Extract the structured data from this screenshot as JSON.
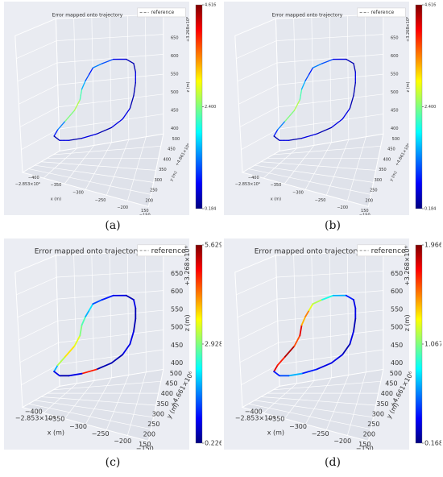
{
  "chart_data": [
    {
      "type": "line",
      "panel_label": "(a)",
      "title": "Error mapped onto trajectory",
      "legend": "reference",
      "x_axis": {
        "label": "x (m)",
        "offset": "−2.853×10⁶",
        "ticks": [
          "−400",
          "−350",
          "−300",
          "−250",
          "−200",
          "−150"
        ]
      },
      "y_axis": {
        "label": "y (m)",
        "offset": "+4.661×10⁶",
        "ticks": [
          "150",
          "200",
          "250",
          "300",
          "350",
          "400",
          "450",
          "500"
        ]
      },
      "z_axis": {
        "label": "z (m)",
        "offset": "+3.268×10⁶",
        "ticks": [
          "400",
          "450",
          "500",
          "550",
          "600",
          "650"
        ]
      },
      "colorbar": {
        "min": 0.184,
        "mid": 2.4,
        "max": 4.616,
        "labels": [
          "4.616",
          "2.400",
          "0.184"
        ]
      },
      "error_pattern": [
        0.15,
        0.25,
        0.5,
        0.55,
        0.45,
        0.3,
        0.2,
        0.15,
        0.25,
        0.2,
        0.1,
        0.05,
        0.05,
        0.1,
        0.05,
        0.05,
        0.1,
        0.1,
        0.05,
        0.1,
        0.05,
        0.1,
        0.05,
        0.1
      ]
    },
    {
      "type": "line",
      "panel_label": "(b)",
      "title": "Error mapped onto trajectory",
      "legend": "reference",
      "x_axis": {
        "label": "x (m)",
        "offset": "−2.853×10⁶",
        "ticks": [
          "−400",
          "−350",
          "−300",
          "−250",
          "−200",
          "−150"
        ]
      },
      "y_axis": {
        "label": "y (m)",
        "offset": "+4.661×10⁶",
        "ticks": [
          "150",
          "200",
          "250",
          "300",
          "350",
          "400",
          "450",
          "500"
        ]
      },
      "z_axis": {
        "label": "z (m)",
        "offset": "+3.268×10⁶",
        "ticks": [
          "400",
          "450",
          "500",
          "550",
          "600",
          "650"
        ]
      },
      "colorbar": {
        "min": 0.184,
        "mid": 2.4,
        "max": 4.616,
        "labels": [
          "4.616",
          "2.400",
          "0.184"
        ]
      },
      "error_pattern": [
        0.15,
        0.25,
        0.5,
        0.55,
        0.45,
        0.3,
        0.2,
        0.15,
        0.25,
        0.2,
        0.1,
        0.05,
        0.05,
        0.1,
        0.05,
        0.05,
        0.1,
        0.1,
        0.05,
        0.1,
        0.05,
        0.1,
        0.05,
        0.1
      ]
    },
    {
      "type": "line",
      "panel_label": "(c)",
      "title": "Error mapped onto trajectory",
      "legend": "reference",
      "x_axis": {
        "label": "x (m)",
        "offset": "−2.853×10⁶",
        "ticks": [
          "−400",
          "−350",
          "−300",
          "−250",
          "−200",
          "−150"
        ]
      },
      "y_axis": {
        "label": "y (m)",
        "offset": "+4.661×10⁶",
        "ticks": [
          "150",
          "200",
          "250",
          "300",
          "350",
          "400",
          "450",
          "500"
        ]
      },
      "z_axis": {
        "label": "z (m)",
        "offset": "+3.268×10⁶",
        "ticks": [
          "400",
          "450",
          "500",
          "550",
          "600",
          "650"
        ]
      },
      "colorbar": {
        "min": 0.226,
        "mid": 2.928,
        "max": 5.629,
        "labels": [
          "5.629",
          "2.928",
          "0.226"
        ]
      },
      "error_pattern": [
        0.3,
        0.55,
        0.65,
        0.6,
        0.5,
        0.45,
        0.3,
        0.35,
        0.2,
        0.15,
        0.1,
        0.05,
        0.1,
        0.05,
        0.05,
        0.1,
        0.1,
        0.05,
        0.05,
        0.85,
        0.1,
        0.05,
        0.1,
        0.05
      ]
    },
    {
      "type": "line",
      "panel_label": "(d)",
      "title": "Error mapped onto trajectory",
      "legend": "reference",
      "x_axis": {
        "label": "x (m)",
        "offset": "−2.853×10⁶",
        "ticks": [
          "−400",
          "−350",
          "−300",
          "−250",
          "−200",
          "−150"
        ]
      },
      "y_axis": {
        "label": "y (m)",
        "offset": "+4.661×10⁶",
        "ticks": [
          "150",
          "200",
          "250",
          "300",
          "350",
          "400",
          "450",
          "500"
        ]
      },
      "z_axis": {
        "label": "z (m)",
        "offset": "+3.268×10⁶",
        "ticks": [
          "400",
          "450",
          "500",
          "550",
          "600",
          "650"
        ]
      },
      "colorbar": {
        "min": 0.168,
        "mid": 1.067,
        "max": 1.966,
        "labels": [
          "1.966",
          "1.067",
          "0.168"
        ]
      },
      "error_pattern": [
        0.9,
        0.85,
        0.95,
        0.8,
        0.9,
        0.7,
        0.75,
        0.6,
        0.55,
        0.4,
        0.3,
        0.15,
        0.1,
        0.1,
        0.05,
        0.1,
        0.05,
        0.1,
        0.1,
        0.15,
        0.3,
        0.2,
        0.15,
        0.2
      ]
    }
  ],
  "colors": {
    "pane_bg": "#ebedf3",
    "grid": "#ffffff",
    "reference": "#8c8c8c",
    "colormap": [
      "#00007f",
      "#0000ff",
      "#007fff",
      "#00ffff",
      "#7fff7f",
      "#ffff00",
      "#ff7f00",
      "#ff0000",
      "#7f0000"
    ]
  }
}
